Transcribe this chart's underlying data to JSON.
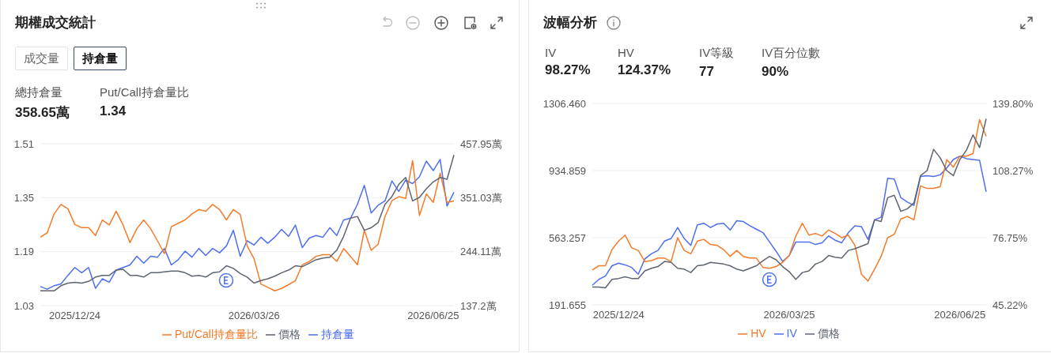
{
  "chart_data": [
    {
      "type": "line",
      "title": "期權成交統計",
      "annotations": [
        "成交量",
        "持倉量",
        "總持倉量",
        "358.65萬",
        "Put/Call持倉量比",
        "1.34"
      ],
      "categories": [
        null,
        null,
        null,
        null,
        null,
        "2025/12/24",
        null,
        null,
        null,
        null,
        null,
        null,
        null,
        null,
        null,
        null,
        null,
        null,
        null,
        null,
        null,
        null,
        null,
        null,
        null,
        null,
        null,
        null,
        null,
        null,
        null,
        "2026/03/26",
        null,
        null,
        null,
        null,
        null,
        null,
        null,
        null,
        null,
        null,
        null,
        null,
        null,
        null,
        null,
        null,
        null,
        null,
        null,
        null,
        null,
        null,
        null,
        null,
        null,
        "2026/06/25",
        null,
        null,
        null
      ],
      "series": [
        {
          "name": "持倉量",
          "color": "#4d6ff0",
          "axis": "y2",
          "values": [
            174.9,
            169.8,
            176.6,
            180.1,
            197.2,
            212.7,
            202.4,
            212.7,
            171.5,
            190.4,
            183.5,
            207.5,
            212.7,
            217.8,
            235.0,
            221.2,
            235.0,
            233.2,
            250.4,
            217.8,
            228.1,
            245.2,
            233.2,
            250.4,
            236.7,
            250.4,
            241.8,
            255.5,
            286.4,
            235.0,
            265.8,
            257.3,
            272.7,
            260.7,
            272.7,
            288.1,
            274.4,
            296.7,
            252.1,
            271.0,
            276.1,
            272.7,
            291.6,
            276.1,
            307.0,
            310.4,
            337.9,
            375.6,
            320.7,
            336.1,
            344.7,
            384.2,
            363.6,
            385.9,
            379.0,
            392.7,
            423.6,
            404.7,
            427.0,
            334.4,
            361.9
          ]
        },
        {
          "name": "Put/Call持倉量比",
          "color": "#f47b2a",
          "axis": "y",
          "values": [
            1.233,
            1.246,
            1.302,
            1.33,
            1.317,
            1.271,
            1.261,
            1.261,
            1.238,
            1.284,
            1.269,
            1.31,
            1.269,
            1.217,
            1.258,
            1.284,
            1.258,
            1.222,
            1.184,
            1.264,
            1.274,
            1.284,
            1.302,
            1.315,
            1.31,
            1.33,
            1.315,
            1.284,
            1.315,
            1.3,
            1.207,
            1.169,
            1.094,
            1.084,
            1.074,
            1.081,
            1.092,
            1.104,
            1.151,
            1.161,
            1.176,
            1.181,
            1.181,
            1.161,
            1.199,
            1.176,
            1.151,
            1.253,
            1.194,
            1.212,
            1.294,
            1.341,
            1.353,
            1.348,
            1.46,
            1.297,
            1.361,
            1.336,
            1.423,
            1.336,
            1.34
          ]
        },
        {
          "name": "價格",
          "color": "#5d6570",
          "axis": "y2",
          "values": [
            166.4,
            166.4,
            166.4,
            176.6,
            181.8,
            183.5,
            181.8,
            185.2,
            193.8,
            197.2,
            197.2,
            207.5,
            209.2,
            197.2,
            197.2,
            193.8,
            202.4,
            202.4,
            204.1,
            205.8,
            205.8,
            202.4,
            195.5,
            197.2,
            193.8,
            202.4,
            204.1,
            216.1,
            210.9,
            200.7,
            193.8,
            181.8,
            186.9,
            190.4,
            195.5,
            202.4,
            207.5,
            216.1,
            214.4,
            221.2,
            228.1,
            231.5,
            233.2,
            247.0,
            274.4,
            310.4,
            313.8,
            286.4,
            291.6,
            301.8,
            337.9,
            353.3,
            377.3,
            391.0,
            344.7,
            351.6,
            368.7,
            382.4,
            391.0,
            387.6,
            435.6
          ]
        }
      ],
      "ylim": [
        1.03,
        1.51
      ],
      "yticks": [
        1.03,
        1.19,
        1.35,
        1.51
      ],
      "y2lim": [
        137.2,
        457.95
      ],
      "y2ticks": [
        {
          "value": 137.2,
          "label": "137.2萬"
        },
        {
          "value": 244.11,
          "label": "244.11萬"
        },
        {
          "value": 351.03,
          "label": "351.03萬"
        },
        {
          "value": 457.95,
          "label": "457.95萬"
        }
      ],
      "grid": "y",
      "legend": "bottom"
    },
    {
      "type": "line",
      "title": "波幅分析",
      "annotations": [
        "IV",
        "98.27%",
        "HV",
        "124.37%",
        "IV等級",
        "77",
        "IV百分位數",
        "90%"
      ],
      "categories": [
        null,
        null,
        null,
        null,
        "2025/12/24",
        null,
        null,
        null,
        null,
        null,
        null,
        null,
        null,
        null,
        null,
        null,
        null,
        null,
        null,
        null,
        null,
        null,
        null,
        null,
        null,
        null,
        null,
        null,
        null,
        null,
        "2026/03/25",
        null,
        null,
        null,
        null,
        null,
        null,
        null,
        null,
        null,
        null,
        null,
        null,
        null,
        null,
        null,
        null,
        null,
        null,
        null,
        null,
        null,
        null,
        null,
        null,
        null,
        "2026/06/25",
        null,
        null,
        null,
        null
      ],
      "series": [
        {
          "name": "IV",
          "color": "#4d6ff0",
          "axis": "y2",
          "values": [
            54.4,
            57.19,
            58.79,
            63.58,
            64.78,
            63.98,
            62.78,
            59.59,
            66.77,
            69.17,
            70.76,
            75.15,
            76.35,
            81.54,
            76.35,
            73.16,
            82.74,
            83.53,
            81.54,
            83.13,
            83.53,
            80.34,
            84.73,
            84.33,
            82.34,
            80.74,
            79.14,
            74.75,
            70.36,
            65.57,
            68.37,
            74.75,
            74.75,
            74.75,
            73.56,
            74.35,
            77.55,
            75.55,
            74.35,
            79.14,
            82.34,
            81.94,
            75.95,
            85.13,
            86.33,
            104.69,
            104.29,
            95.51,
            93.51,
            91.92,
            105.48,
            105.88,
            105.48,
            106.28,
            109.47,
            113.47,
            115.06,
            113.87,
            113.47,
            113.07,
            98.27
          ]
        },
        {
          "name": "HV",
          "color": "#f47b2a",
          "axis": "y2",
          "values": [
            61.58,
            63.58,
            63.58,
            71.16,
            75.15,
            77.95,
            71.96,
            70.76,
            65.57,
            65.97,
            67.17,
            67.17,
            65.57,
            76.75,
            70.76,
            69.17,
            75.15,
            75.96,
            73.56,
            73.16,
            71.16,
            67.97,
            70.76,
            67.97,
            67.17,
            67.17,
            62.78,
            62.38,
            63.18,
            65.18,
            68.37,
            77.55,
            83.53,
            77.95,
            78.74,
            77.55,
            80.34,
            78.74,
            76.75,
            77.95,
            73.16,
            59.59,
            56.39,
            61.98,
            67.97,
            76.75,
            78.35,
            85.53,
            86.73,
            85.13,
            101.09,
            99.9,
            99.9,
            100.7,
            113.47,
            109.87,
            115.06,
            115.06,
            116.26,
            132.22,
            124.37
          ]
        },
        {
          "name": "價格",
          "color": "#5d6570",
          "axis": "y",
          "values": [
            290.4,
            290.4,
            285.7,
            332.8,
            337.5,
            346.9,
            337.5,
            337.5,
            379.8,
            393.9,
            403.3,
            431.6,
            426.9,
            393.9,
            389.2,
            370.4,
            408.0,
            412.7,
            426.9,
            422.2,
            417.4,
            408.0,
            389.2,
            379.8,
            393.9,
            408.0,
            436.3,
            459.8,
            441.0,
            403.3,
            375.1,
            332.8,
            370.4,
            379.8,
            417.4,
            431.6,
            464.5,
            455.1,
            450.4,
            492.7,
            502.1,
            516.2,
            530.3,
            662.1,
            652.6,
            784.4,
            798.5,
            709.1,
            723.2,
            756.1,
            906.7,
            934.9,
            1052.5,
            1005.4,
            934.9,
            906.7,
            996.0,
            1047.8,
            1132.5,
            1061.9,
            1221.8
          ]
        }
      ],
      "ylim": [
        191.655,
        1306.46
      ],
      "yticks": [
        191.655,
        563.257,
        934.859,
        {
          "value": 1306.46,
          "label": "1306.460"
        }
      ],
      "y2lim": [
        45.22,
        139.8
      ],
      "y2ticks": [
        {
          "value": 45.22,
          "label": "45.22%"
        },
        {
          "value": 76.75,
          "label": "76.75%"
        },
        {
          "value": 108.27,
          "label": "108.27%"
        },
        {
          "value": 139.8,
          "label": "139.80%"
        }
      ],
      "grid": "y",
      "legend": "bottom"
    }
  ]
}
